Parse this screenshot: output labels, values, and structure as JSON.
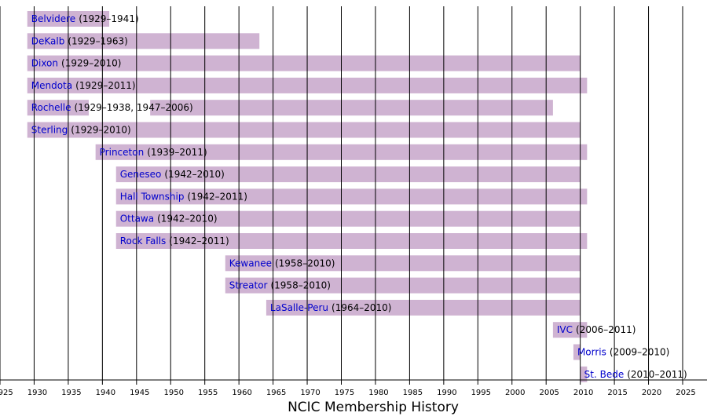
{
  "chart_data": {
    "type": "timeline",
    "title": "NCIC Membership History",
    "xlim": [
      1925,
      2025
    ],
    "xticks": [
      1925,
      1930,
      1935,
      1940,
      1945,
      1950,
      1955,
      1960,
      1965,
      1970,
      1975,
      1980,
      1985,
      1990,
      1995,
      2000,
      2005,
      2010,
      2015,
      2020,
      2025
    ],
    "grid": true,
    "bar_color": "#cfb3d2",
    "name_color": "#0000cc",
    "teams": [
      {
        "name": "Belvidere",
        "label": "(1929–1941)",
        "periods": [
          [
            1929,
            1941
          ]
        ]
      },
      {
        "name": "DeKalb",
        "label": "(1929–1963)",
        "periods": [
          [
            1929,
            1963
          ]
        ]
      },
      {
        "name": "Dixon",
        "label": "(1929–2010)",
        "periods": [
          [
            1929,
            2010
          ]
        ]
      },
      {
        "name": "Mendota",
        "label": "(1929–2011)",
        "periods": [
          [
            1929,
            2011
          ]
        ]
      },
      {
        "name": "Rochelle",
        "label": "(1929–1938, 1947–2006)",
        "periods": [
          [
            1929,
            1938
          ],
          [
            1947,
            2006
          ]
        ]
      },
      {
        "name": "Sterling",
        "label": "(1929–2010)",
        "periods": [
          [
            1929,
            2010
          ]
        ]
      },
      {
        "name": "Princeton",
        "label": "(1939–2011)",
        "periods": [
          [
            1939,
            2011
          ]
        ]
      },
      {
        "name": "Geneseo",
        "label": "(1942–2010)",
        "periods": [
          [
            1942,
            2010
          ]
        ]
      },
      {
        "name": "Hall Township",
        "label": "(1942–2011)",
        "periods": [
          [
            1942,
            2011
          ]
        ]
      },
      {
        "name": "Ottawa",
        "label": "(1942–2010)",
        "periods": [
          [
            1942,
            2010
          ]
        ]
      },
      {
        "name": "Rock Falls",
        "label": "(1942–2011)",
        "periods": [
          [
            1942,
            2011
          ]
        ]
      },
      {
        "name": "Kewanee",
        "label": "(1958–2010)",
        "periods": [
          [
            1958,
            2010
          ]
        ]
      },
      {
        "name": "Streator",
        "label": "(1958–2010)",
        "periods": [
          [
            1958,
            2010
          ]
        ]
      },
      {
        "name": "LaSalle-Peru",
        "label": "(1964–2010)",
        "periods": [
          [
            1964,
            2010
          ]
        ]
      },
      {
        "name": "IVC",
        "label": "(2006–2011)",
        "periods": [
          [
            2006,
            2011
          ]
        ]
      },
      {
        "name": "Morris",
        "label": "(2009–2010)",
        "periods": [
          [
            2009,
            2010
          ]
        ]
      },
      {
        "name": "St. Bede",
        "label": "(2010–2011)",
        "periods": [
          [
            2010,
            2011
          ]
        ]
      }
    ]
  }
}
